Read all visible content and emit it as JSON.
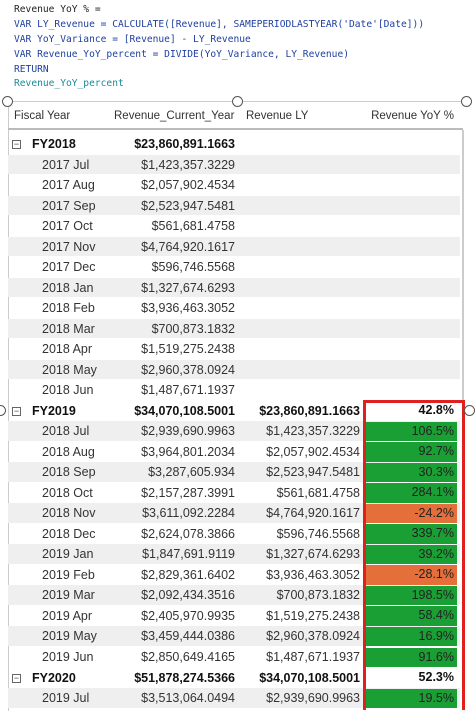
{
  "code": [
    "Revenue YoY % =",
    "VAR LY_Revenue = CALCULATE([Revenue], SAMEPERIODLASTYEAR('Date'[Date]))",
    "VAR YoY_Variance = [Revenue] - LY_Revenue",
    "VAR Revenue_YoY_percent = DIVIDE(YoY_Variance, LY_Revenue)",
    "RETURN",
    "Revenue_YoY_percent"
  ],
  "table": {
    "columns": [
      "Fiscal Year",
      "Revenue_Current_Year",
      "Revenue LY",
      "Revenue YoY %"
    ],
    "colors": {
      "positive": "#1a9f35",
      "negative": "#e46f3a"
    },
    "groups": [
      {
        "cells": [
          "FY2018",
          "$23,860,891.1663"
        ],
        "rows": [
          [
            "2017 Jul",
            "$1,423,357.3229"
          ],
          [
            "2017 Aug",
            "$2,057,902.4534"
          ],
          [
            "2017 Sep",
            "$2,523,947.5481"
          ],
          [
            "2017 Oct",
            "$561,681.4758"
          ],
          [
            "2017 Nov",
            "$4,764,920.1617"
          ],
          [
            "2017 Dec",
            "$596,746.5568"
          ],
          [
            "2018 Jan",
            "$1,327,674.6293"
          ],
          [
            "2018 Feb",
            "$3,936,463.3052"
          ],
          [
            "2018 Mar",
            "$700,873.1832"
          ],
          [
            "2018 Apr",
            "$1,519,275.2438"
          ],
          [
            "2018 May",
            "$2,960,378.0924"
          ],
          [
            "2018 Jun",
            "$1,487,671.1937"
          ]
        ]
      },
      {
        "cells": [
          "FY2019",
          "$34,070,108.5001",
          "$23,860,891.1663",
          "42.8%"
        ],
        "rows": [
          [
            "2018 Jul",
            "$2,939,690.9963",
            "$1,423,357.3229",
            "106.5%"
          ],
          [
            "2018 Aug",
            "$3,964,801.2034",
            "$2,057,902.4534",
            "92.7%"
          ],
          [
            "2018 Sep",
            "$3,287,605.934",
            "$2,523,947.5481",
            "30.3%"
          ],
          [
            "2018 Oct",
            "$2,157,287.3991",
            "$561,681.4758",
            "284.1%"
          ],
          [
            "2018 Nov",
            "$3,611,092.2284",
            "$4,764,920.1617",
            "-24.2%"
          ],
          [
            "2018 Dec",
            "$2,624,078.3866",
            "$596,746.5568",
            "339.7%"
          ],
          [
            "2019 Jan",
            "$1,847,691.9119",
            "$1,327,674.6293",
            "39.2%"
          ],
          [
            "2019 Feb",
            "$2,829,361.6402",
            "$3,936,463.3052",
            "-28.1%"
          ],
          [
            "2019 Mar",
            "$2,092,434.3516",
            "$700,873.1832",
            "198.5%"
          ],
          [
            "2019 Apr",
            "$2,405,970.9935",
            "$1,519,275.2438",
            "58.4%"
          ],
          [
            "2019 May",
            "$3,459,444.0386",
            "$2,960,378.0924",
            "16.9%"
          ],
          [
            "2019 Jun",
            "$2,850,649.4165",
            "$1,487,671.1937",
            "91.6%"
          ]
        ]
      },
      {
        "cells": [
          "FY2020",
          "$51,878,274.5366",
          "$34,070,108.5001",
          "52.3%"
        ],
        "rows": [
          [
            "2019 Jul",
            "$3,513,064.0494",
            "$2,939,690.9963",
            "19.5%"
          ]
        ]
      }
    ]
  }
}
